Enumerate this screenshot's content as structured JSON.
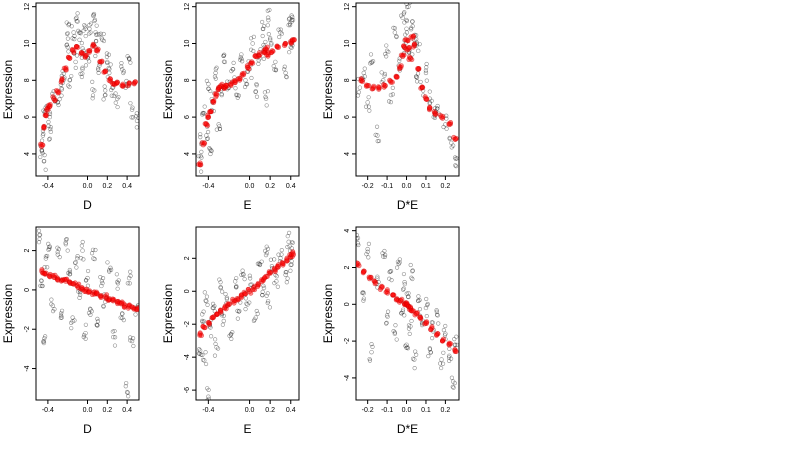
{
  "chart_data": [
    {
      "type": "scatter",
      "xlabel": "D",
      "ylabel": "Expression",
      "xlim": [
        -0.52,
        0.52
      ],
      "ylim": [
        2.8,
        12.2
      ],
      "xticks": [
        -0.4,
        0.0,
        0.2,
        0.4
      ],
      "xtick_labels": [
        "-0.4",
        "0.0",
        "0.2",
        "0.4"
      ],
      "yticks": [
        4,
        6,
        8,
        10,
        12
      ],
      "ytick_labels": [
        "4",
        "6",
        "8",
        "10",
        "12"
      ],
      "series": [
        {
          "role": "observed",
          "color": "#000000",
          "x": [
            -0.46,
            -0.45,
            -0.44,
            -0.43,
            -0.38,
            -0.37,
            -0.34,
            -0.3,
            -0.26,
            -0.25,
            -0.2,
            -0.19,
            -0.18,
            -0.14,
            -0.12,
            -0.1,
            -0.08,
            -0.05,
            -0.04,
            -0.02,
            0.0,
            0.02,
            0.05,
            0.06,
            0.08,
            0.1,
            0.12,
            0.15,
            0.18,
            0.2,
            0.22,
            0.25,
            0.3,
            0.35,
            0.4,
            0.42,
            0.45,
            0.5
          ],
          "y": [
            4.2,
            5.0,
            3.6,
            6.3,
            6.0,
            5.2,
            7.0,
            6.8,
            7.5,
            8.5,
            9.8,
            11.0,
            8.0,
            10.6,
            9.0,
            11.2,
            10.2,
            8.6,
            9.6,
            10.8,
            9.2,
            11.0,
            7.5,
            11.5,
            9.8,
            10.5,
            8.8,
            10.2,
            7.2,
            9.0,
            8.4,
            7.6,
            7.0,
            8.6,
            7.8,
            9.2,
            6.4,
            5.8
          ]
        },
        {
          "role": "fitted",
          "color": "#ff0000",
          "x": [
            -0.46,
            -0.44,
            -0.42,
            -0.4,
            -0.38,
            -0.34,
            -0.3,
            -0.26,
            -0.22,
            -0.18,
            -0.14,
            -0.1,
            -0.06,
            -0.02,
            0.02,
            0.06,
            0.1,
            0.14,
            0.18,
            0.22,
            0.26,
            0.3,
            0.36,
            0.42,
            0.48
          ],
          "y": [
            4.5,
            5.4,
            6.1,
            6.4,
            6.6,
            7.0,
            7.4,
            8.0,
            8.6,
            9.2,
            9.6,
            9.8,
            9.5,
            9.3,
            9.6,
            9.9,
            9.6,
            9.0,
            8.5,
            8.0,
            7.8,
            7.9,
            7.7,
            7.8,
            7.9
          ]
        }
      ]
    },
    {
      "type": "scatter",
      "xlabel": "E",
      "ylabel": "Expression",
      "xlim": [
        -0.52,
        0.48
      ],
      "ylim": [
        2.8,
        12.2
      ],
      "xticks": [
        -0.4,
        0.0,
        0.2,
        0.4
      ],
      "xtick_labels": [
        "-0.4",
        "0.0",
        "0.2",
        "0.4"
      ],
      "yticks": [
        4,
        6,
        8,
        10,
        12
      ],
      "ytick_labels": [
        "4",
        "6",
        "8",
        "10",
        "12"
      ],
      "series": [
        {
          "role": "observed",
          "color": "#000000",
          "x": [
            -0.48,
            -0.46,
            -0.44,
            -0.42,
            -0.4,
            -0.38,
            -0.36,
            -0.33,
            -0.3,
            -0.27,
            -0.24,
            -0.2,
            -0.16,
            -0.12,
            -0.08,
            -0.04,
            0.0,
            0.03,
            0.06,
            0.1,
            0.13,
            0.15,
            0.16,
            0.18,
            0.2,
            0.25,
            0.3,
            0.35,
            0.38,
            0.4,
            0.41
          ],
          "y": [
            3.4,
            4.6,
            6.2,
            5.0,
            7.8,
            4.0,
            6.8,
            8.4,
            5.6,
            7.2,
            9.0,
            7.6,
            8.6,
            7.2,
            9.4,
            8.0,
            8.6,
            10.0,
            7.4,
            9.2,
            10.8,
            9.6,
            7.0,
            11.4,
            10.2,
            9.0,
            10.6,
            8.4,
            11.0,
            9.8,
            11.2
          ]
        },
        {
          "role": "fitted",
          "color": "#ff0000",
          "x": [
            -0.48,
            -0.45,
            -0.42,
            -0.4,
            -0.38,
            -0.35,
            -0.32,
            -0.3,
            -0.28,
            -0.25,
            -0.22,
            -0.18,
            -0.14,
            -0.1,
            -0.06,
            -0.02,
            0.02,
            0.06,
            0.1,
            0.14,
            0.16,
            0.18,
            0.22,
            0.28,
            0.34,
            0.4,
            0.42
          ],
          "y": [
            3.5,
            4.5,
            5.6,
            6.0,
            6.3,
            6.8,
            7.2,
            7.6,
            7.7,
            7.6,
            7.7,
            7.8,
            7.9,
            8.1,
            8.3,
            8.7,
            9.0,
            9.3,
            9.4,
            9.6,
            9.7,
            9.4,
            9.6,
            9.8,
            9.9,
            10.1,
            10.2
          ]
        }
      ]
    },
    {
      "type": "scatter",
      "xlabel": "D*E",
      "ylabel": "Expression",
      "xlim": [
        -0.26,
        0.27
      ],
      "ylim": [
        2.8,
        12.2
      ],
      "xticks": [
        -0.2,
        -0.1,
        0.0,
        0.1,
        0.2
      ],
      "xtick_labels": [
        "-0.2",
        "-0.1",
        "0.0",
        "0.1",
        "0.2"
      ],
      "yticks": [
        4,
        6,
        8,
        10,
        12
      ],
      "ytick_labels": [
        "4",
        "6",
        "8",
        "10",
        "12"
      ],
      "series": [
        {
          "role": "observed",
          "color": "#000000",
          "x": [
            -0.24,
            -0.22,
            -0.2,
            -0.18,
            -0.15,
            -0.12,
            -0.1,
            -0.08,
            -0.06,
            -0.04,
            -0.02,
            -0.01,
            0.0,
            0.01,
            0.02,
            0.03,
            0.04,
            0.05,
            0.06,
            0.08,
            0.1,
            0.12,
            0.14,
            0.16,
            0.2,
            0.23,
            0.25
          ],
          "y": [
            7.6,
            8.4,
            6.8,
            9.0,
            5.0,
            8.0,
            9.6,
            7.2,
            10.6,
            8.8,
            11.4,
            9.8,
            10.8,
            12.0,
            9.2,
            11.2,
            10.2,
            8.2,
            9.6,
            7.6,
            8.4,
            7.0,
            6.0,
            6.6,
            5.6,
            4.6,
            3.8
          ]
        },
        {
          "role": "fitted",
          "color": "#ff0000",
          "x": [
            -0.23,
            -0.2,
            -0.17,
            -0.14,
            -0.11,
            -0.08,
            -0.05,
            -0.03,
            -0.02,
            -0.01,
            0.0,
            0.01,
            0.02,
            0.03,
            0.04,
            0.06,
            0.08,
            0.1,
            0.12,
            0.15,
            0.18,
            0.22,
            0.25
          ],
          "y": [
            8.0,
            7.7,
            7.6,
            7.6,
            7.7,
            7.9,
            8.2,
            8.7,
            9.3,
            9.8,
            10.2,
            9.7,
            9.2,
            10.3,
            9.9,
            8.6,
            7.6,
            7.0,
            6.5,
            6.2,
            6.0,
            5.6,
            4.8
          ]
        }
      ]
    },
    {
      "type": "scatter",
      "xlabel": "D",
      "ylabel": "Expression",
      "xlim": [
        -0.52,
        0.52
      ],
      "ylim": [
        -5.6,
        3.2
      ],
      "xticks": [
        -0.4,
        0.0,
        0.2,
        0.4
      ],
      "xtick_labels": [
        "-0.4",
        "0.0",
        "0.2",
        "0.4"
      ],
      "yticks": [
        -4,
        -2,
        0,
        2
      ],
      "ytick_labels": [
        "-4",
        "-2",
        "0",
        "2"
      ],
      "series": [
        {
          "role": "observed",
          "color": "#000000",
          "x": [
            -0.48,
            -0.46,
            -0.44,
            -0.42,
            -0.38,
            -0.35,
            -0.3,
            -0.26,
            -0.22,
            -0.18,
            -0.15,
            -0.12,
            -0.08,
            -0.05,
            -0.02,
            0.0,
            0.03,
            0.06,
            0.1,
            0.14,
            0.18,
            0.22,
            0.26,
            0.3,
            0.35,
            0.4,
            0.42,
            0.45,
            0.5
          ],
          "y": [
            2.8,
            0.2,
            -2.7,
            1.6,
            2.2,
            -0.8,
            1.8,
            -1.4,
            2.4,
            0.8,
            -1.6,
            1.4,
            -0.4,
            2.0,
            -2.2,
            0.6,
            -1.0,
            1.6,
            -1.8,
            0.2,
            -0.6,
            1.0,
            -2.4,
            0.4,
            -1.2,
            -5.2,
            0.6,
            -2.6,
            -1.0
          ]
        },
        {
          "role": "fitted",
          "color": "#ff0000",
          "x": [
            -0.46,
            -0.42,
            -0.38,
            -0.34,
            -0.3,
            -0.26,
            -0.22,
            -0.18,
            -0.14,
            -0.1,
            -0.06,
            -0.02,
            0.02,
            0.06,
            0.1,
            0.14,
            0.18,
            0.22,
            0.26,
            0.3,
            0.34,
            0.38,
            0.42,
            0.46,
            0.5
          ],
          "y": [
            0.95,
            0.85,
            0.7,
            0.65,
            0.55,
            0.5,
            0.45,
            0.4,
            0.3,
            0.2,
            0.1,
            0.0,
            -0.05,
            -0.15,
            -0.2,
            -0.3,
            -0.35,
            -0.45,
            -0.55,
            -0.6,
            -0.7,
            -0.8,
            -0.85,
            -0.9,
            -1.0
          ]
        }
      ]
    },
    {
      "type": "scatter",
      "xlabel": "E",
      "ylabel": "Expression",
      "xlim": [
        -0.52,
        0.48
      ],
      "ylim": [
        -6.6,
        3.9
      ],
      "xticks": [
        -0.4,
        0.0,
        0.2,
        0.4
      ],
      "xtick_labels": [
        "-0.4",
        "0.0",
        "0.2",
        "0.4"
      ],
      "yticks": [
        -6,
        -4,
        -2,
        0,
        2
      ],
      "ytick_labels": [
        "-6",
        "-4",
        "-2",
        "0",
        "2"
      ],
      "series": [
        {
          "role": "observed",
          "color": "#000000",
          "x": [
            -0.48,
            -0.46,
            -0.44,
            -0.42,
            -0.4,
            -0.38,
            -0.35,
            -0.32,
            -0.28,
            -0.25,
            -0.22,
            -0.18,
            -0.14,
            -0.1,
            -0.06,
            -0.02,
            0.02,
            0.06,
            0.1,
            0.14,
            0.16,
            0.18,
            0.22,
            0.26,
            0.3,
            0.35,
            0.38,
            0.4,
            0.41
          ],
          "y": [
            -3.6,
            -1.4,
            -4.2,
            -0.6,
            -6.4,
            -2.2,
            -1.0,
            -3.4,
            0.2,
            -1.8,
            -0.4,
            -2.6,
            0.6,
            -1.2,
            1.0,
            -0.8,
            0.4,
            -1.6,
            1.6,
            0.2,
            2.2,
            -0.6,
            1.4,
            0.6,
            2.0,
            1.0,
            3.0,
            1.6,
            2.6
          ]
        },
        {
          "role": "fitted",
          "color": "#ff0000",
          "x": [
            -0.48,
            -0.44,
            -0.4,
            -0.36,
            -0.32,
            -0.28,
            -0.24,
            -0.2,
            -0.16,
            -0.12,
            -0.08,
            -0.04,
            0.0,
            0.04,
            0.08,
            0.12,
            0.16,
            0.2,
            0.24,
            0.28,
            0.32,
            0.36,
            0.4,
            0.42
          ],
          "y": [
            -2.6,
            -2.2,
            -1.9,
            -1.6,
            -1.4,
            -1.2,
            -1.0,
            -0.8,
            -0.6,
            -0.45,
            -0.3,
            -0.15,
            0.0,
            0.2,
            0.4,
            0.6,
            0.9,
            1.1,
            1.3,
            1.5,
            1.7,
            1.9,
            2.1,
            2.3
          ]
        }
      ]
    },
    {
      "type": "scatter",
      "xlabel": "D*E",
      "ylabel": "Expression",
      "xlim": [
        -0.26,
        0.27
      ],
      "ylim": [
        -5.2,
        4.2
      ],
      "xticks": [
        -0.2,
        -0.1,
        0.0,
        0.1,
        0.2
      ],
      "xtick_labels": [
        "-0.2",
        "-0.1",
        "0.0",
        "0.1",
        "0.2"
      ],
      "yticks": [
        -4,
        -2,
        0,
        2,
        4
      ],
      "ytick_labels": [
        "-4",
        "-2",
        "0",
        "2",
        "4"
      ],
      "series": [
        {
          "role": "observed",
          "color": "#000000",
          "x": [
            -0.25,
            -0.22,
            -0.2,
            -0.18,
            -0.15,
            -0.12,
            -0.1,
            -0.08,
            -0.06,
            -0.04,
            -0.02,
            -0.01,
            0.0,
            0.01,
            0.02,
            0.03,
            0.04,
            0.06,
            0.08,
            0.1,
            0.12,
            0.14,
            0.16,
            0.18,
            0.2,
            0.22,
            0.24,
            0.25
          ],
          "y": [
            3.6,
            0.6,
            3.0,
            -2.6,
            1.4,
            2.6,
            -0.6,
            1.8,
            -1.6,
            2.2,
            -0.4,
            1.2,
            -2.2,
            0.4,
            -1.2,
            1.8,
            -3.0,
            0.2,
            -1.0,
            -0.2,
            -2.4,
            -1.4,
            -0.6,
            -3.0,
            -1.6,
            -2.8,
            -4.2,
            -2.2
          ]
        },
        {
          "role": "fitted",
          "color": "#ff0000",
          "x": [
            -0.25,
            -0.22,
            -0.19,
            -0.16,
            -0.13,
            -0.1,
            -0.07,
            -0.05,
            -0.03,
            -0.01,
            0.0,
            0.01,
            0.02,
            0.03,
            0.05,
            0.07,
            0.1,
            0.13,
            0.16,
            0.19,
            0.22,
            0.25
          ],
          "y": [
            2.2,
            1.8,
            1.4,
            1.2,
            0.9,
            0.7,
            0.5,
            0.3,
            0.2,
            0.05,
            0.0,
            -0.1,
            -0.2,
            -0.35,
            -0.5,
            -0.7,
            -1.0,
            -1.3,
            -1.6,
            -1.9,
            -2.2,
            -2.5
          ]
        }
      ]
    }
  ]
}
